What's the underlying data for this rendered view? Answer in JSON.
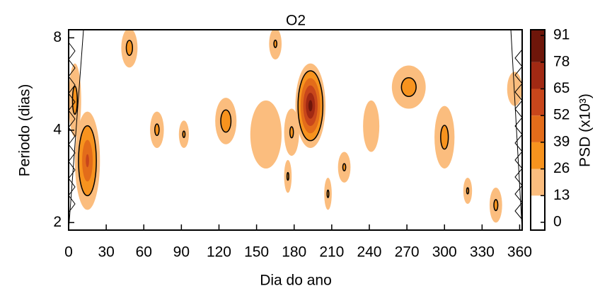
{
  "chart_data": {
    "type": "contour",
    "title": "O2",
    "xlabel": "Dia do ano",
    "ylabel": "Periodo (dias)",
    "xlim": [
      0,
      362
    ],
    "xticks": [
      0,
      30,
      60,
      90,
      120,
      150,
      180,
      210,
      240,
      270,
      300,
      330,
      360
    ],
    "ylim": [
      1.89,
      8.5
    ],
    "yticks": [
      2,
      4,
      8
    ],
    "ylog": true,
    "colorbar": {
      "label": "PSD (x10³)",
      "levels": [
        0,
        13,
        26,
        39,
        52,
        65,
        78,
        91
      ],
      "lim": [
        -3.8,
        93.8
      ],
      "colors": [
        "#ffffff",
        "#fbbd7e",
        "#f7931e",
        "#e36c1a",
        "#c8461b",
        "#a12913",
        "#6e160a"
      ]
    },
    "contour_line_level": 26,
    "blobs": [
      {
        "days": [
          0,
          10
        ],
        "periods": [
          3.8,
          6.6
        ],
        "psd": 34
      },
      {
        "days": [
          5,
          25
        ],
        "periods": [
          2.2,
          4.6
        ],
        "psd": 58
      },
      {
        "days": [
          42,
          55
        ],
        "periods": [
          6.4,
          8.6
        ],
        "psd": 34
      },
      {
        "days": [
          65,
          76
        ],
        "periods": [
          3.5,
          4.6
        ],
        "psd": 32
      },
      {
        "days": [
          88,
          96
        ],
        "periods": [
          3.5,
          4.3
        ],
        "psd": 30
      },
      {
        "days": [
          117,
          134
        ],
        "periods": [
          3.6,
          5.1
        ],
        "psd": 38
      },
      {
        "days": [
          145,
          170
        ],
        "periods": [
          3.0,
          5.0
        ],
        "psd": 20
      },
      {
        "days": [
          160,
          170
        ],
        "periods": [
          6.8,
          8.6
        ],
        "psd": 30
      },
      {
        "days": [
          172,
          178
        ],
        "periods": [
          2.5,
          3.2
        ],
        "psd": 30
      },
      {
        "days": [
          172,
          184
        ],
        "periods": [
          3.3,
          4.7
        ],
        "psd": 30
      },
      {
        "days": [
          181,
          205
        ],
        "periods": [
          3.5,
          6.6
        ],
        "psd": 88
      },
      {
        "days": [
          204,
          210
        ],
        "periods": [
          2.2,
          2.8
        ],
        "psd": 30
      },
      {
        "days": [
          215,
          225
        ],
        "periods": [
          2.7,
          3.4
        ],
        "psd": 30
      },
      {
        "days": [
          235,
          248
        ],
        "periods": [
          3.4,
          5.0
        ],
        "psd": 20
      },
      {
        "days": [
          258,
          285
        ],
        "periods": [
          4.7,
          6.5
        ],
        "psd": 36
      },
      {
        "days": [
          292,
          308
        ],
        "periods": [
          3.0,
          4.8
        ],
        "psd": 34
      },
      {
        "days": [
          315,
          322
        ],
        "periods": [
          2.3,
          2.8
        ],
        "psd": 30
      },
      {
        "days": [
          336,
          346
        ],
        "periods": [
          2.0,
          2.6
        ],
        "psd": 32
      },
      {
        "days": [
          350,
          362
        ],
        "periods": [
          4.8,
          6.2
        ],
        "psd": 20
      }
    ]
  }
}
